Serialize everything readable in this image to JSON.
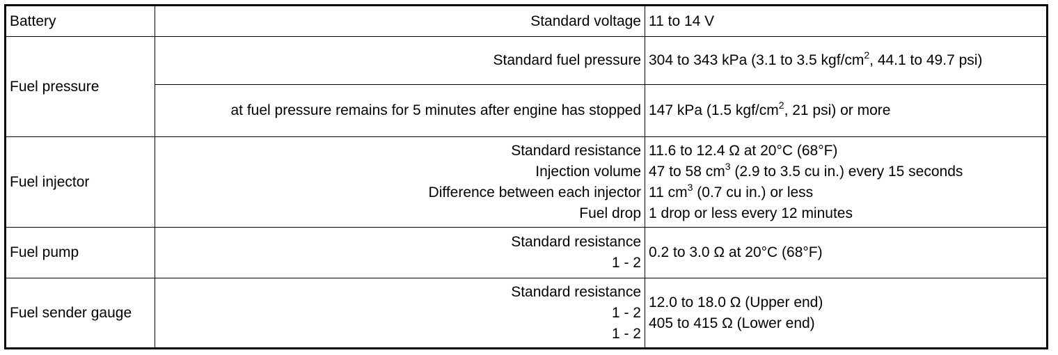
{
  "rows": {
    "battery": {
      "component": "Battery",
      "condition": "Standard voltage",
      "value": "11 to 14 V"
    },
    "fuel_pressure": {
      "component": "Fuel pressure",
      "standard": {
        "condition": "Standard fuel pressure",
        "value_pre": "304 to 343 kPa (3.1 to 3.5 kgf/cm",
        "value_sup": "2",
        "value_post": ", 44.1 to 49.7 psi)"
      },
      "remain": {
        "condition": "at fuel pressure remains for 5 minutes after engine has stopped",
        "value_pre": "147 kPa (1.5 kgf/cm",
        "value_sup": "2",
        "value_post": ", 21 psi) or more"
      }
    },
    "fuel_injector": {
      "component": "Fuel injector",
      "items": [
        {
          "condition": "Standard resistance",
          "value_pre": "11.6 to 12.4 Ω at 20°C (68°F)"
        },
        {
          "condition": "Injection volume",
          "value_pre": "47 to 58 cm",
          "value_sup": "3",
          "value_post": " (2.9 to 3.5 cu in.) every 15 seconds"
        },
        {
          "condition": "Difference between each injector",
          "value_pre": "11 cm",
          "value_sup": "3",
          "value_post": " (0.7 cu in.) or less"
        },
        {
          "condition": "Fuel drop",
          "value_pre": "1 drop or less every 12 minutes"
        }
      ]
    },
    "fuel_pump": {
      "component": "Fuel pump",
      "conditions": [
        "Standard resistance",
        "1 - 2"
      ],
      "value": "0.2 to 3.0 Ω at 20°C (68°F)"
    },
    "fuel_sender_gauge": {
      "component": "Fuel sender gauge",
      "conditions": [
        "Standard resistance",
        "1 - 2",
        "1 - 2"
      ],
      "values": [
        "12.0 to 18.0 Ω (Upper end)",
        "405 to 415 Ω (Lower end)"
      ]
    }
  }
}
